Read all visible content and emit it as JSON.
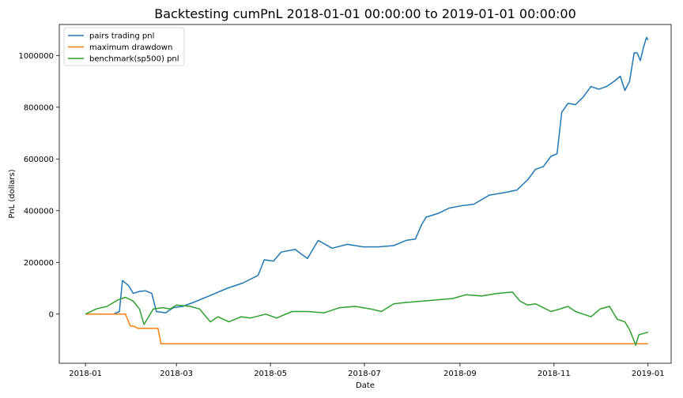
{
  "chart_data": {
    "type": "line",
    "title": "Backtesting cumPnL 2018-01-01 00:00:00 to 2019-01-01 00:00:00",
    "xlabel": "Date",
    "ylabel": "PnL (dollars)",
    "xlim": [
      "2017-12-15",
      "2019-01-16"
    ],
    "ylim": [
      -190000,
      1120000
    ],
    "x_ticks": [
      "2018-01",
      "2018-03",
      "2018-05",
      "2018-07",
      "2018-09",
      "2018-11",
      "2019-01"
    ],
    "y_ticks": [
      0,
      200000,
      400000,
      600000,
      800000,
      1000000
    ],
    "grid": false,
    "legend_position": "upper-left",
    "series": [
      {
        "name": "pairs trading pnl",
        "color": "#1f77b4",
        "points": [
          [
            "2018-01-01",
            0
          ],
          [
            "2018-01-19",
            0
          ],
          [
            "2018-01-23",
            10000
          ],
          [
            "2018-01-25",
            130000
          ],
          [
            "2018-01-29",
            110000
          ],
          [
            "2018-02-01",
            80000
          ],
          [
            "2018-02-05",
            88000
          ],
          [
            "2018-02-09",
            90000
          ],
          [
            "2018-02-13",
            80000
          ],
          [
            "2018-02-16",
            10000
          ],
          [
            "2018-02-22",
            5000
          ],
          [
            "2018-02-27",
            25000
          ],
          [
            "2018-03-05",
            30000
          ],
          [
            "2018-03-12",
            45000
          ],
          [
            "2018-03-22",
            70000
          ],
          [
            "2018-04-03",
            100000
          ],
          [
            "2018-04-13",
            120000
          ],
          [
            "2018-04-23",
            150000
          ],
          [
            "2018-04-27",
            210000
          ],
          [
            "2018-05-03",
            205000
          ],
          [
            "2018-05-08",
            240000
          ],
          [
            "2018-05-17",
            250000
          ],
          [
            "2018-05-25",
            215000
          ],
          [
            "2018-06-01",
            285000
          ],
          [
            "2018-06-10",
            255000
          ],
          [
            "2018-06-20",
            270000
          ],
          [
            "2018-06-30",
            260000
          ],
          [
            "2018-07-10",
            260000
          ],
          [
            "2018-07-20",
            265000
          ],
          [
            "2018-07-28",
            285000
          ],
          [
            "2018-08-03",
            290000
          ],
          [
            "2018-08-07",
            345000
          ],
          [
            "2018-08-10",
            375000
          ],
          [
            "2018-08-18",
            390000
          ],
          [
            "2018-08-25",
            410000
          ],
          [
            "2018-09-03",
            420000
          ],
          [
            "2018-09-10",
            425000
          ],
          [
            "2018-09-20",
            460000
          ],
          [
            "2018-09-30",
            470000
          ],
          [
            "2018-10-08",
            480000
          ],
          [
            "2018-10-15",
            520000
          ],
          [
            "2018-10-20",
            560000
          ],
          [
            "2018-10-25",
            570000
          ],
          [
            "2018-10-30",
            610000
          ],
          [
            "2018-11-03",
            620000
          ],
          [
            "2018-11-06",
            780000
          ],
          [
            "2018-11-10",
            815000
          ],
          [
            "2018-11-15",
            810000
          ],
          [
            "2018-11-20",
            840000
          ],
          [
            "2018-11-25",
            880000
          ],
          [
            "2018-11-30",
            870000
          ],
          [
            "2018-12-05",
            880000
          ],
          [
            "2018-12-10",
            900000
          ],
          [
            "2018-12-14",
            920000
          ],
          [
            "2018-12-17",
            865000
          ],
          [
            "2018-12-20",
            900000
          ],
          [
            "2018-12-23",
            1010000
          ],
          [
            "2018-12-25",
            1010000
          ],
          [
            "2018-12-27",
            980000
          ],
          [
            "2018-12-29",
            1030000
          ],
          [
            "2018-12-31",
            1070000
          ],
          [
            "2019-01-01",
            1060000
          ]
        ]
      },
      {
        "name": "maximum drawdown",
        "color": "#ff7f0e",
        "points": [
          [
            "2018-01-01",
            0
          ],
          [
            "2018-01-27",
            0
          ],
          [
            "2018-01-30",
            -45000
          ],
          [
            "2018-02-02",
            -48000
          ],
          [
            "2018-02-04",
            -55000
          ],
          [
            "2018-02-17",
            -55000
          ],
          [
            "2018-02-19",
            -115000
          ],
          [
            "2019-01-01",
            -115000
          ]
        ]
      },
      {
        "name": "benchmark(sp500) pnl",
        "color": "#2ca02c",
        "points": [
          [
            "2018-01-01",
            0
          ],
          [
            "2018-01-08",
            20000
          ],
          [
            "2018-01-15",
            30000
          ],
          [
            "2018-01-22",
            55000
          ],
          [
            "2018-01-27",
            65000
          ],
          [
            "2018-02-01",
            50000
          ],
          [
            "2018-02-05",
            20000
          ],
          [
            "2018-02-08",
            -40000
          ],
          [
            "2018-02-14",
            20000
          ],
          [
            "2018-02-20",
            25000
          ],
          [
            "2018-02-25",
            20000
          ],
          [
            "2018-03-01",
            35000
          ],
          [
            "2018-03-10",
            30000
          ],
          [
            "2018-03-16",
            20000
          ],
          [
            "2018-03-23",
            -30000
          ],
          [
            "2018-03-28",
            -10000
          ],
          [
            "2018-04-04",
            -30000
          ],
          [
            "2018-04-12",
            -10000
          ],
          [
            "2018-04-18",
            -15000
          ],
          [
            "2018-04-28",
            0
          ],
          [
            "2018-05-05",
            -15000
          ],
          [
            "2018-05-15",
            10000
          ],
          [
            "2018-05-25",
            10000
          ],
          [
            "2018-06-05",
            5000
          ],
          [
            "2018-06-15",
            25000
          ],
          [
            "2018-06-25",
            30000
          ],
          [
            "2018-07-05",
            20000
          ],
          [
            "2018-07-12",
            10000
          ],
          [
            "2018-07-20",
            40000
          ],
          [
            "2018-07-28",
            45000
          ],
          [
            "2018-08-07",
            50000
          ],
          [
            "2018-08-17",
            55000
          ],
          [
            "2018-08-27",
            60000
          ],
          [
            "2018-09-05",
            75000
          ],
          [
            "2018-09-15",
            70000
          ],
          [
            "2018-09-25",
            80000
          ],
          [
            "2018-10-05",
            85000
          ],
          [
            "2018-10-10",
            50000
          ],
          [
            "2018-10-15",
            35000
          ],
          [
            "2018-10-20",
            40000
          ],
          [
            "2018-10-25",
            25000
          ],
          [
            "2018-10-30",
            10000
          ],
          [
            "2018-11-05",
            20000
          ],
          [
            "2018-11-10",
            30000
          ],
          [
            "2018-11-15",
            10000
          ],
          [
            "2018-11-20",
            0
          ],
          [
            "2018-11-25",
            -10000
          ],
          [
            "2018-12-01",
            20000
          ],
          [
            "2018-12-07",
            30000
          ],
          [
            "2018-12-12",
            -20000
          ],
          [
            "2018-12-17",
            -30000
          ],
          [
            "2018-12-20",
            -60000
          ],
          [
            "2018-12-24",
            -120000
          ],
          [
            "2018-12-26",
            -80000
          ],
          [
            "2018-12-29",
            -75000
          ],
          [
            "2019-01-01",
            -70000
          ]
        ]
      }
    ]
  }
}
